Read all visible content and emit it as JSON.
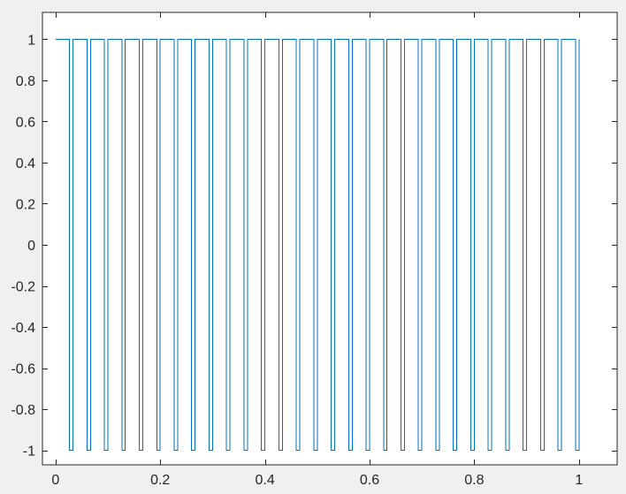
{
  "chart_data": {
    "type": "line",
    "title": "",
    "xlabel": "",
    "ylabel": "",
    "xlim": [
      -0.025,
      1.073
    ],
    "ylim": [
      -1.07,
      1.13
    ],
    "grid": false,
    "legend": "none",
    "x_ticks": [
      "0",
      "0.2",
      "0.4",
      "0.6",
      "0.8",
      "1"
    ],
    "y_ticks": [
      "1",
      "0.8",
      "0.6",
      "0.4",
      "0.2",
      "0",
      "-0.2",
      "-0.4",
      "-0.6",
      "-0.8",
      "-1"
    ],
    "x_tick_values": [
      0,
      0.2,
      0.4,
      0.6,
      0.8,
      1
    ],
    "y_tick_values": [
      1,
      0.8,
      0.6,
      0.4,
      0.2,
      0,
      -0.2,
      -0.4,
      -0.6,
      -0.8,
      -1
    ],
    "series": [
      {
        "waveform": "pulse train",
        "color": "#0072BD",
        "high_value": 1,
        "low_value": -1,
        "period": 0.0333,
        "duty_cycle": 0.8,
        "x_start": 0,
        "x_end": 1,
        "pulse_count": 30
      }
    ]
  },
  "colors": {
    "figure_background": "#f0f0f0",
    "axes_background": "#ffffff",
    "axis_color": "#262626",
    "line_color": "#0072BD"
  }
}
